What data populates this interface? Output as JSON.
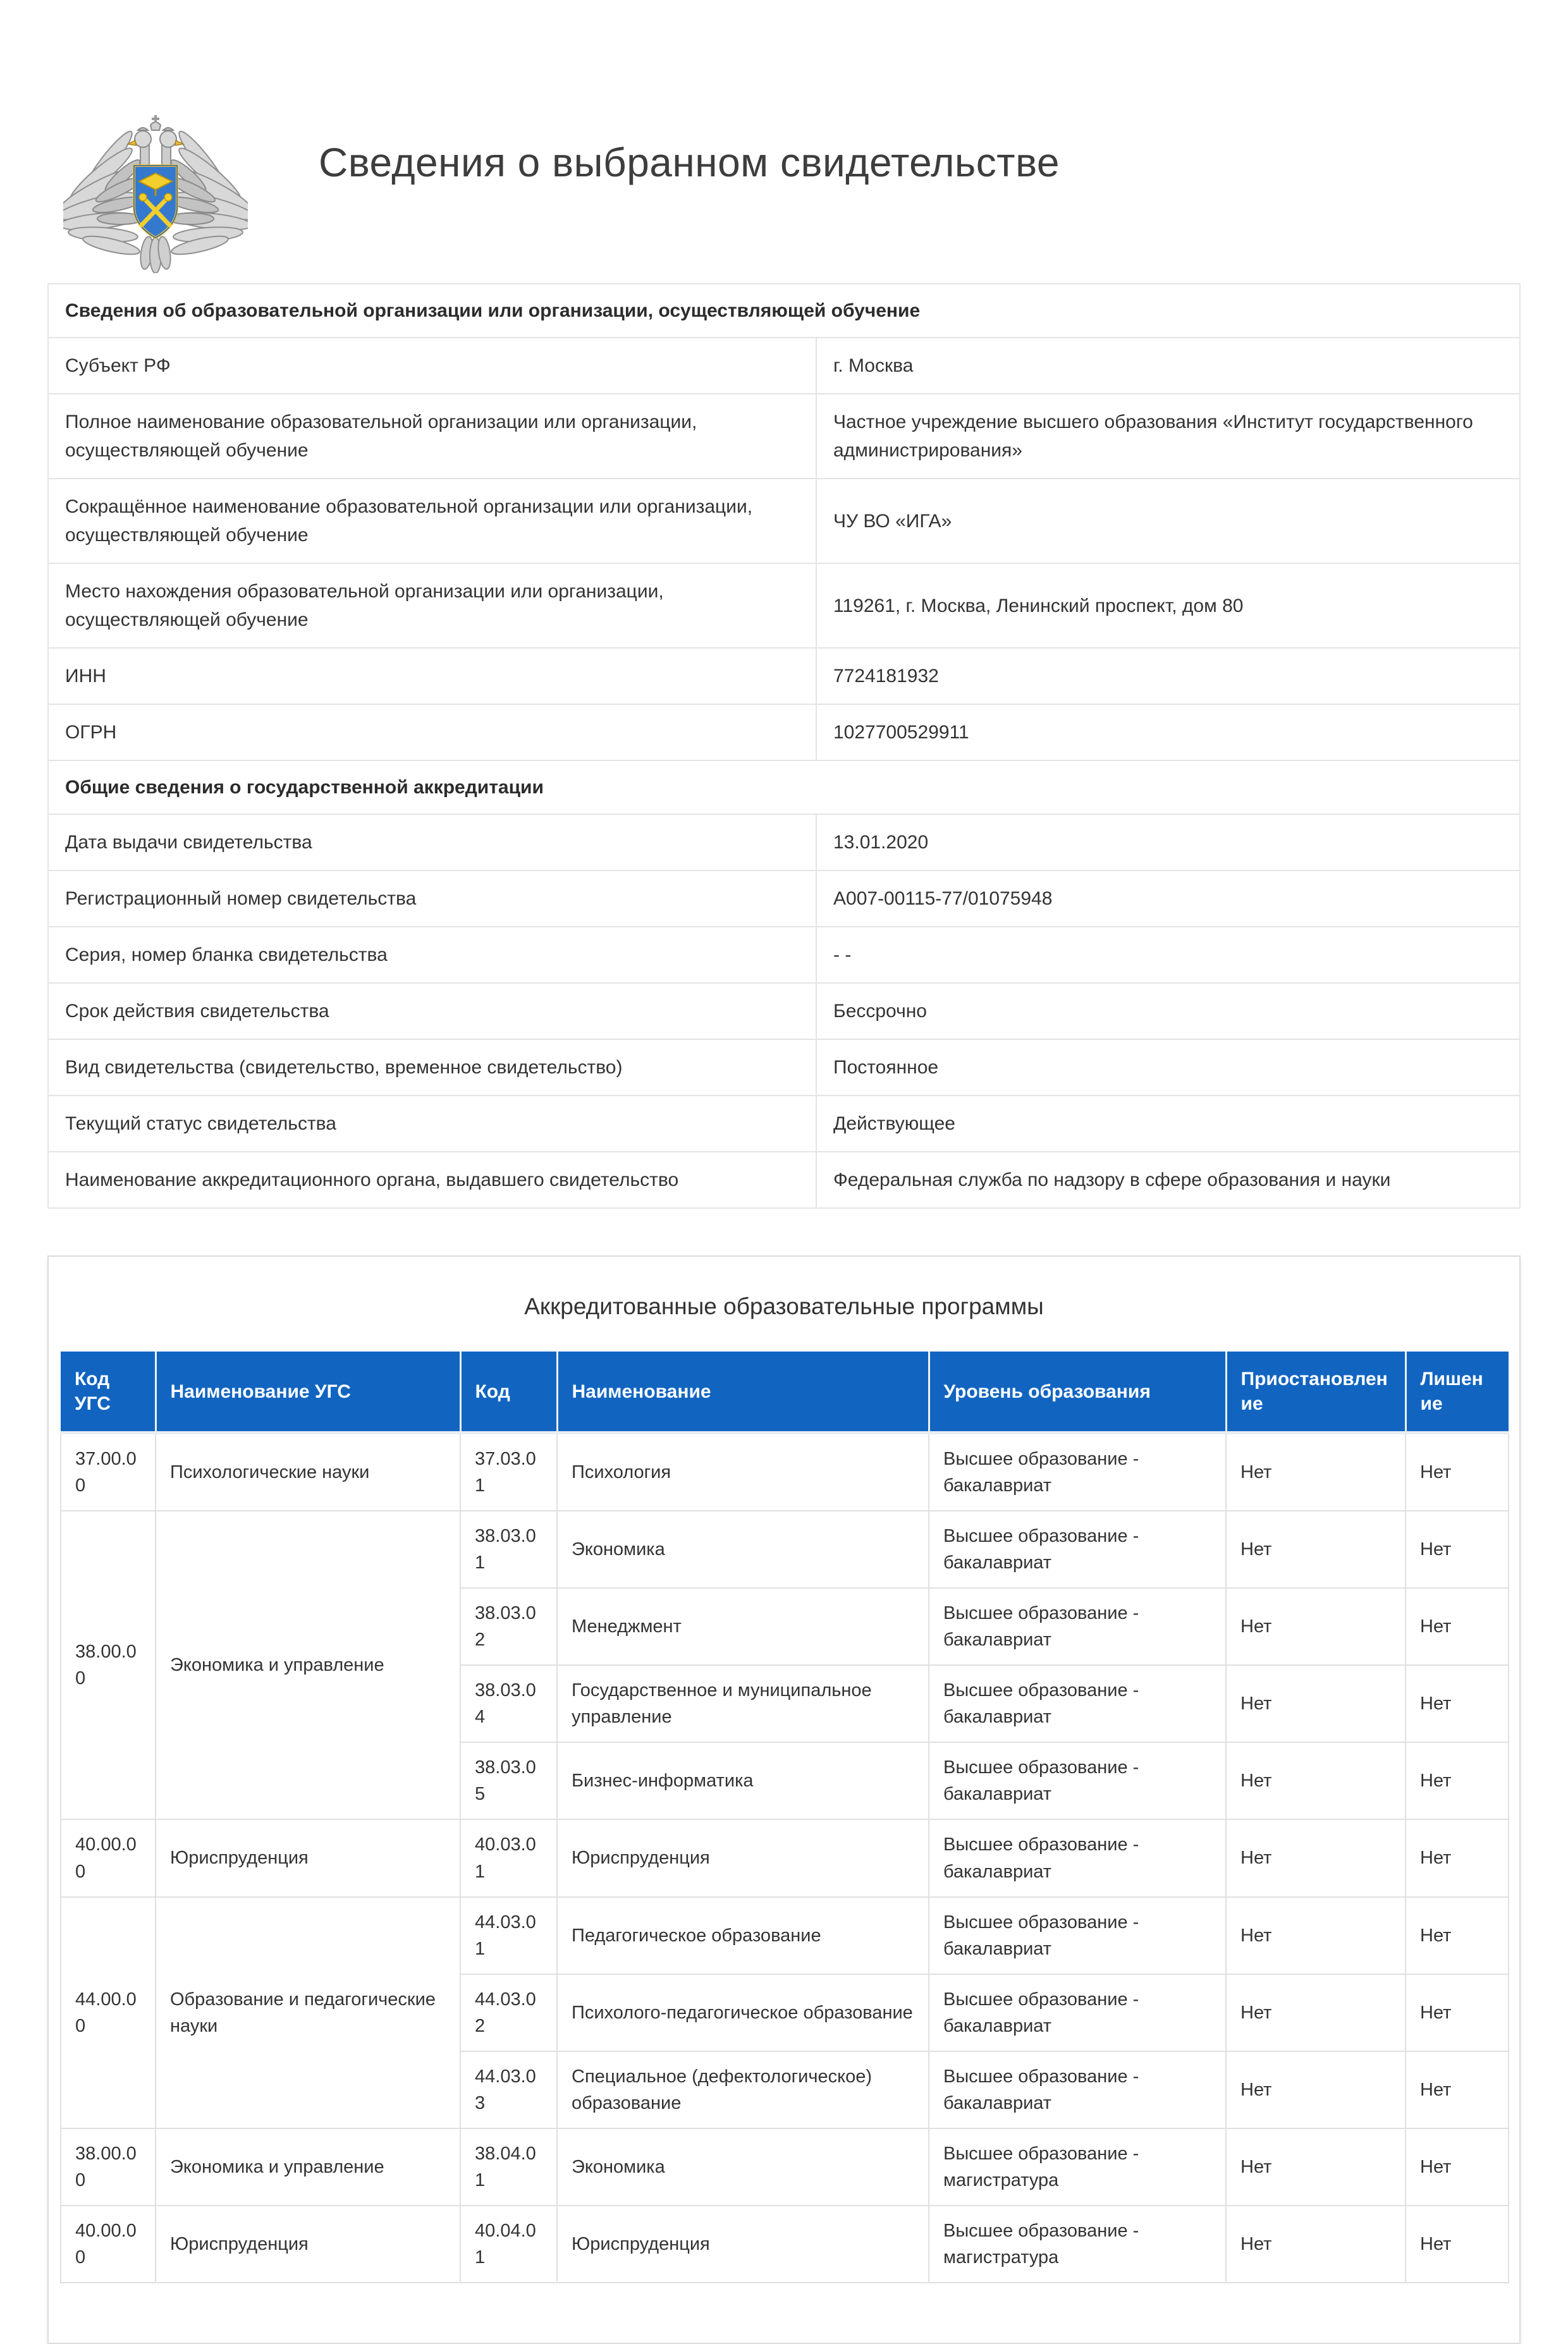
{
  "page": {
    "title": "Сведения о выбранном свидетельстве",
    "emblem": "rosobrnadzor-coat-of-arms"
  },
  "colors": {
    "table_header_blue": "#1165C1",
    "table_border": "#E0E0E0",
    "emblem_shield_blue": "#3579CF",
    "emblem_gold": "#F0C53A"
  },
  "org_table": {
    "sections": [
      {
        "header": "Сведения об образовательной организации или организации, осуществляющей обучение",
        "rows": [
          {
            "label": "Субъект РФ",
            "value": "г. Москва"
          },
          {
            "label": "Полное наименование образовательной организации или организации, осуществляющей обучение",
            "value": "Частное учреждение высшего образования «Институт государственного администрирования»"
          },
          {
            "label": "Сокращённое наименование образовательной организации или организации, осуществляющей обучение",
            "value": "ЧУ ВО «ИГА»"
          },
          {
            "label": "Место нахождения образовательной организации или организации, осуществляющей обучение",
            "value": "119261, г. Москва, Ленинский проспект, дом 80"
          },
          {
            "label": "ИНН",
            "value": "7724181932"
          },
          {
            "label": "ОГРН",
            "value": "1027700529911"
          }
        ]
      },
      {
        "header": "Общие сведения о государственной аккредитации",
        "rows": [
          {
            "label": "Дата выдачи свидетельства",
            "value": "13.01.2020"
          },
          {
            "label": "Регистрационный номер свидетельства",
            "value": "A007-00115-77/01075948"
          },
          {
            "label": "Серия, номер бланка свидетельства",
            "value": "- -"
          },
          {
            "label": "Срок действия свидетельства",
            "value": "Бессрочно"
          },
          {
            "label": "Вид свидетельства (свидетельство, временное свидетельство)",
            "value": "Постоянное"
          },
          {
            "label": "Текущий статус свидетельства",
            "value": "Действующее"
          },
          {
            "label": "Наименование аккредитационного органа, выдавшего свидетельство",
            "value": "Федеральная служба по надзору в сфере образования и науки"
          }
        ]
      }
    ]
  },
  "programs": {
    "title": "Аккредитованные образовательные программы",
    "columns": [
      "Код УГС",
      "Наименование УГС",
      "Код",
      "Наименование",
      "Уровень образования",
      "Приостановление",
      "Лишение"
    ],
    "groups": [
      {
        "ugs_code": "37.00.00",
        "ugs_name": "Психологические науки",
        "programs": [
          {
            "code": "37.03.01",
            "name": "Психология",
            "level": "Высшее образование - бакалавриат",
            "suspension": "Нет",
            "deprivation": "Нет"
          }
        ]
      },
      {
        "ugs_code": "38.00.00",
        "ugs_name": "Экономика и управление",
        "programs": [
          {
            "code": "38.03.01",
            "name": "Экономика",
            "level": "Высшее образование - бакалавриат",
            "suspension": "Нет",
            "deprivation": "Нет"
          },
          {
            "code": "38.03.02",
            "name": "Менеджмент",
            "level": "Высшее образование - бакалавриат",
            "suspension": "Нет",
            "deprivation": "Нет"
          },
          {
            "code": "38.03.04",
            "name": "Государственное и муниципальное управление",
            "level": "Высшее образование - бакалавриат",
            "suspension": "Нет",
            "deprivation": "Нет"
          },
          {
            "code": "38.03.05",
            "name": "Бизнес-информатика",
            "level": "Высшее образование - бакалавриат",
            "suspension": "Нет",
            "deprivation": "Нет"
          }
        ]
      },
      {
        "ugs_code": "40.00.00",
        "ugs_name": "Юриспруденция",
        "programs": [
          {
            "code": "40.03.01",
            "name": "Юриспруденция",
            "level": "Высшее образование - бакалавриат",
            "suspension": "Нет",
            "deprivation": "Нет"
          }
        ]
      },
      {
        "ugs_code": "44.00.00",
        "ugs_name": "Образование и педагогические науки",
        "programs": [
          {
            "code": "44.03.01",
            "name": "Педагогическое образование",
            "level": "Высшее образование - бакалавриат",
            "suspension": "Нет",
            "deprivation": "Нет"
          },
          {
            "code": "44.03.02",
            "name": "Психолого-педагогическое образование",
            "level": "Высшее образование - бакалавриат",
            "suspension": "Нет",
            "deprivation": "Нет"
          },
          {
            "code": "44.03.03",
            "name": "Специальное (дефектологическое) образование",
            "level": "Высшее образование - бакалавриат",
            "suspension": "Нет",
            "deprivation": "Нет"
          }
        ]
      },
      {
        "ugs_code": "38.00.00",
        "ugs_name": "Экономика и управление",
        "programs": [
          {
            "code": "38.04.01",
            "name": "Экономика",
            "level": "Высшее образование - магистратура",
            "suspension": "Нет",
            "deprivation": "Нет"
          }
        ]
      },
      {
        "ugs_code": "40.00.00",
        "ugs_name": "Юриспруденция",
        "programs": [
          {
            "code": "40.04.01",
            "name": "Юриспруденция",
            "level": "Высшее образование - магистратура",
            "suspension": "Нет",
            "deprivation": "Нет"
          }
        ]
      }
    ]
  }
}
